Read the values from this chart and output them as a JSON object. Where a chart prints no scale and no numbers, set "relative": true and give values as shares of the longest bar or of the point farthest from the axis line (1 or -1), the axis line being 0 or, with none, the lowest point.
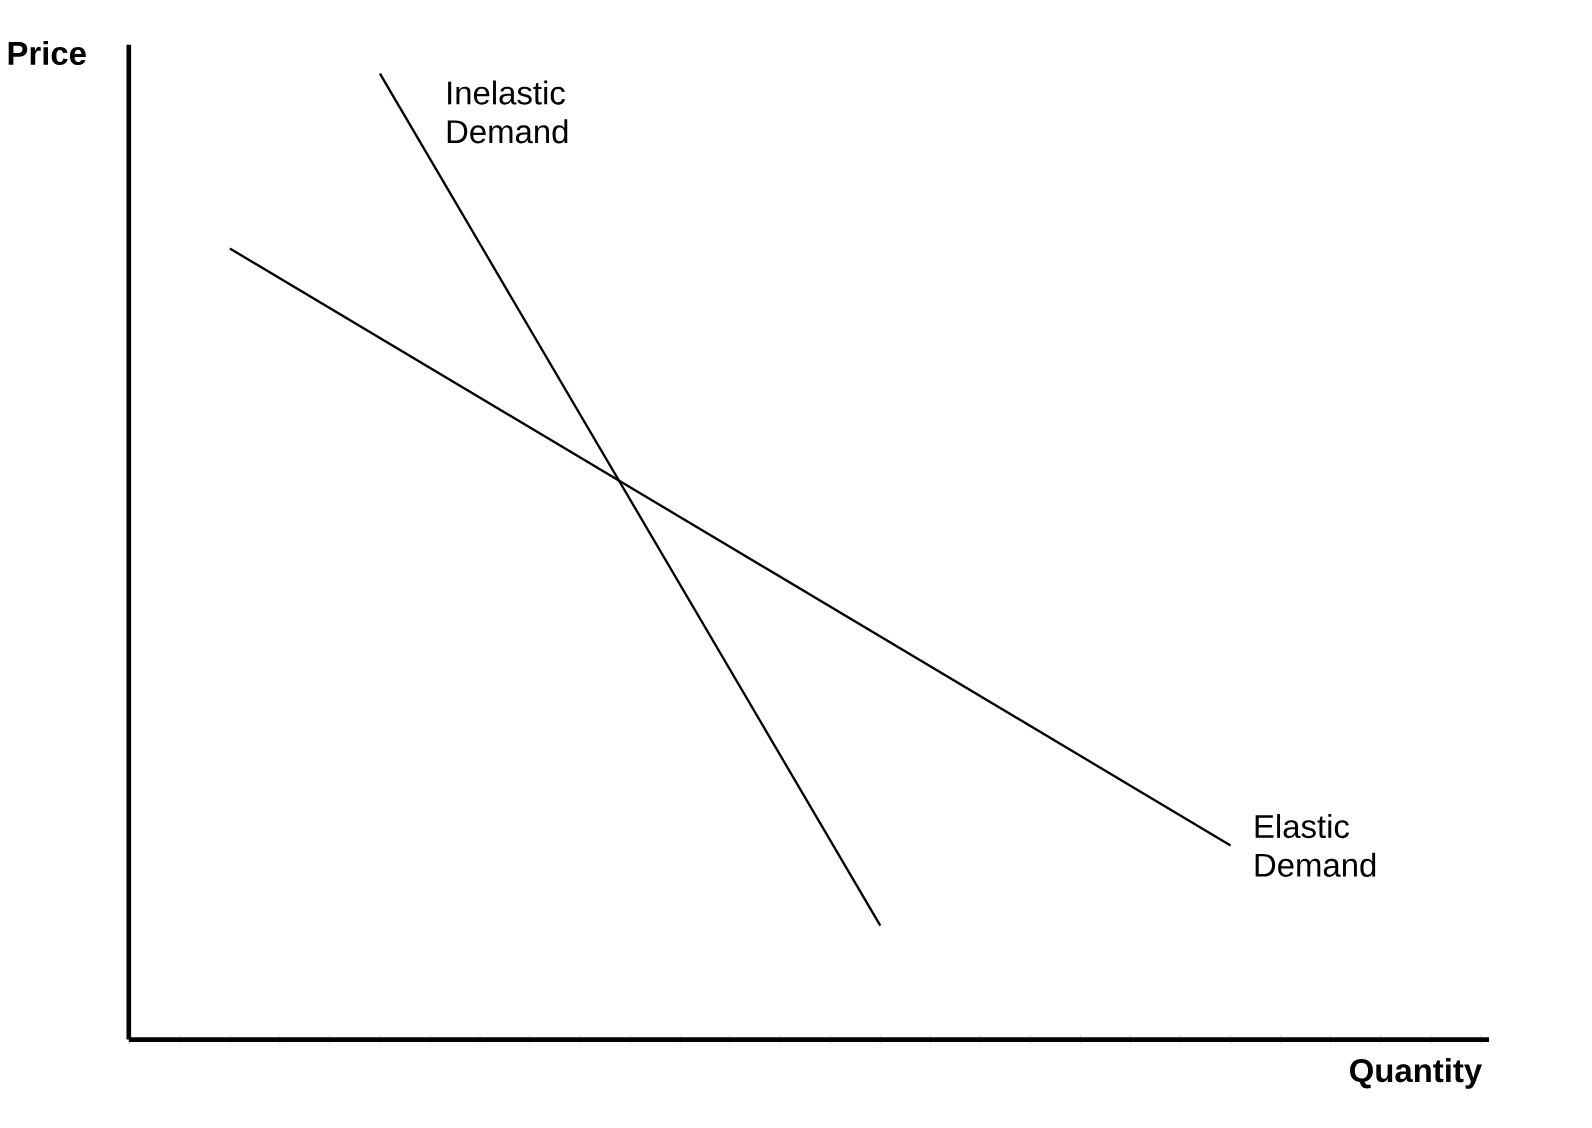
{
  "chart_data": {
    "type": "line",
    "relative": true,
    "xlabel": "Quantity",
    "ylabel": "Price",
    "legend": false,
    "marker": "none",
    "line_style": "solid",
    "categories": [
      null,
      null,
      null,
      null,
      null,
      null,
      null,
      null,
      null,
      null,
      null,
      null,
      null,
      null,
      null,
      null,
      null,
      null,
      null,
      null,
      null
    ],
    "series": [
      {
        "name": "Inelastic Demand",
        "color": "#000000",
        "values": [
          null,
          null,
          null,
          1,
          null,
          null,
          null,
          null,
          null,
          null,
          null,
          null,
          null,
          0.118,
          null,
          null,
          null,
          null,
          null,
          null,
          null
        ]
      },
      {
        "name": "Elastic Demand",
        "color": "#000000",
        "values": [
          0.819,
          null,
          null,
          null,
          null,
          null,
          null,
          null,
          null,
          null,
          null,
          null,
          null,
          null,
          null,
          null,
          null,
          null,
          null,
          null,
          0.201
        ]
      }
    ]
  }
}
